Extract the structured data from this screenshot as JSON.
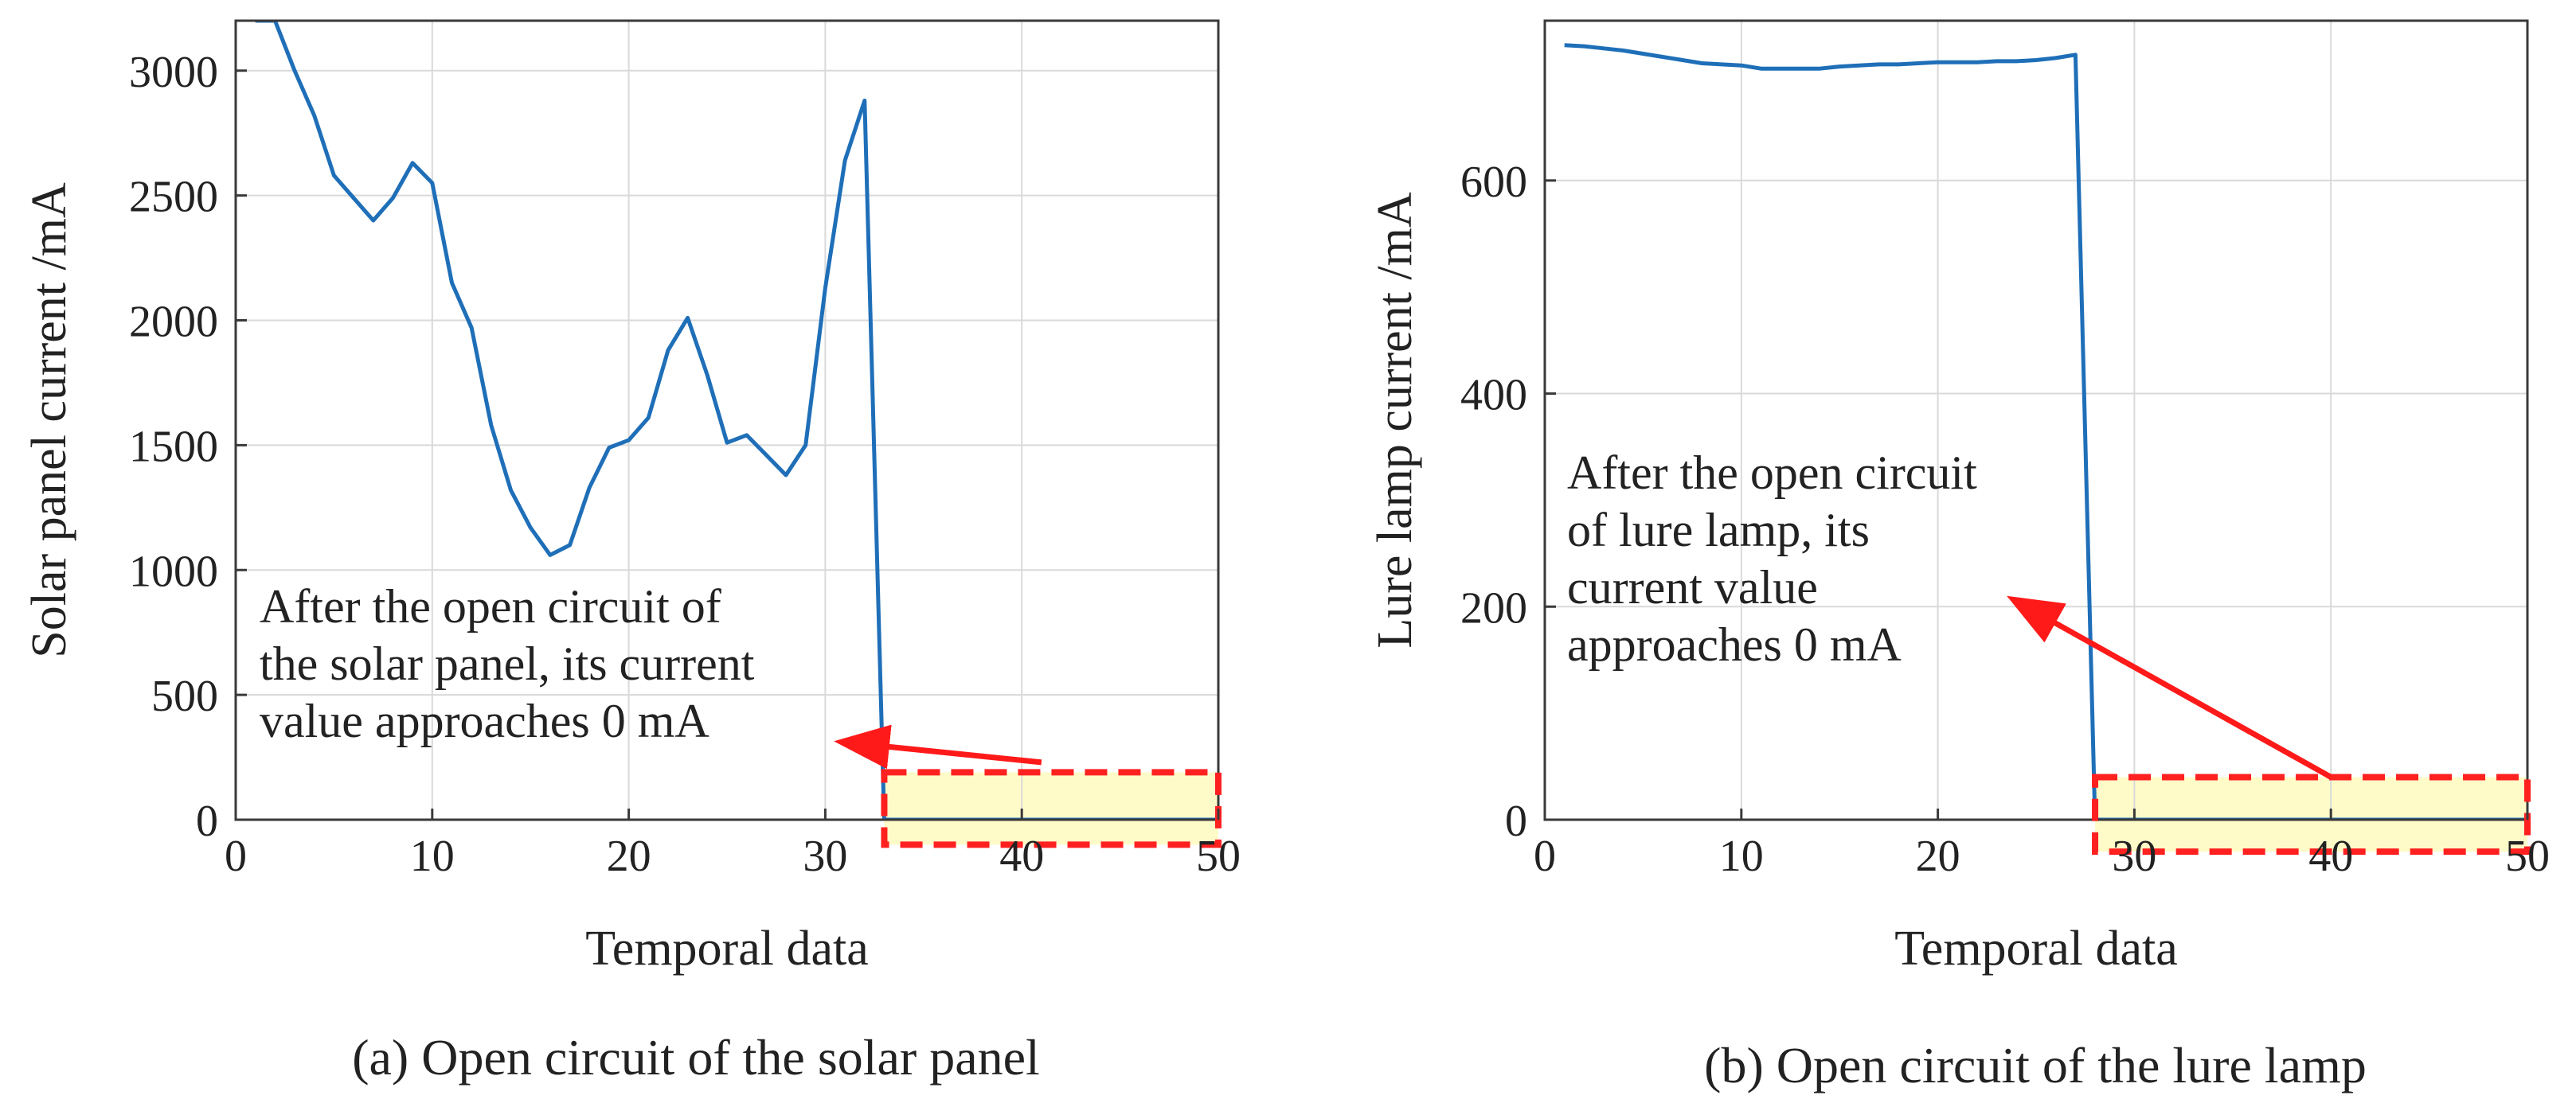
{
  "colors": {
    "line": "#1f6fb8",
    "zero_line": "#3a9b8f",
    "arrow": "#ff1a1a",
    "highlight_fill": "#fffbc8",
    "highlight_border": "#ff2020",
    "grid": "#d9d9d9",
    "axis": "#3a3a3a"
  },
  "chart_data": [
    {
      "type": "line",
      "panel": "a",
      "caption": "(a) Open circuit of the solar panel",
      "xlabel": "Temporal data",
      "ylabel": "Solar panel current /mA",
      "xlim": [
        0,
        50
      ],
      "ylim": [
        0,
        3200
      ],
      "xticks": [
        0,
        10,
        20,
        30,
        40,
        50
      ],
      "yticks": [
        0,
        500,
        1000,
        1500,
        2000,
        2500,
        3000
      ],
      "grid": true,
      "series": [
        {
          "name": "Solar panel current",
          "x": [
            1,
            2,
            3,
            4,
            5,
            6,
            7,
            8,
            9,
            10,
            11,
            12,
            13,
            14,
            15,
            16,
            17,
            18,
            19,
            20,
            21,
            22,
            23,
            24,
            25,
            26,
            27,
            28,
            29,
            30,
            31,
            32,
            33,
            34,
            35,
            36,
            37,
            38,
            39,
            40,
            41,
            42,
            43,
            44,
            45,
            46,
            47,
            48,
            49,
            50
          ],
          "values": [
            3200,
            3200,
            3000,
            2820,
            2580,
            2490,
            2400,
            2490,
            2630,
            2550,
            2150,
            1970,
            1580,
            1320,
            1170,
            1060,
            1100,
            1330,
            1490,
            1520,
            1610,
            1880,
            2010,
            1780,
            1510,
            1540,
            1460,
            1380,
            1500,
            2130,
            2640,
            2880,
            0,
            0,
            0,
            0,
            0,
            0,
            0,
            0,
            0,
            0,
            0,
            0,
            0,
            0,
            0,
            0,
            0,
            0
          ]
        }
      ],
      "highlight": {
        "x_range": [
          33,
          50
        ],
        "y_range": [
          -100,
          190
        ]
      },
      "annotation": {
        "lines": [
          "After the open circuit of",
          "the solar panel, its current",
          "value approaches 0 mA"
        ],
        "arrow_from": [
          41,
          230
        ],
        "arrow_to": [
          31,
          310
        ]
      }
    },
    {
      "type": "line",
      "panel": "b",
      "caption": "(b) Open circuit of the lure lamp",
      "xlabel": "Temporal data",
      "ylabel": "Lure lamp current /mA",
      "xlim": [
        0,
        50
      ],
      "ylim": [
        0,
        750
      ],
      "xticks": [
        0,
        10,
        20,
        30,
        40,
        50
      ],
      "yticks": [
        0,
        200,
        400,
        600
      ],
      "grid": true,
      "series": [
        {
          "name": "Lure lamp current",
          "x": [
            1,
            2,
            3,
            4,
            5,
            6,
            7,
            8,
            9,
            10,
            11,
            12,
            13,
            14,
            15,
            16,
            17,
            18,
            19,
            20,
            21,
            22,
            23,
            24,
            25,
            26,
            27,
            28,
            29,
            30,
            31,
            32,
            33,
            34,
            35,
            36,
            37,
            38,
            39,
            40,
            41,
            42,
            43,
            44,
            45,
            46,
            47,
            48,
            49,
            50
          ],
          "values": [
            727,
            726,
            724,
            722,
            719,
            716,
            713,
            710,
            709,
            708,
            705,
            705,
            705,
            705,
            707,
            708,
            709,
            709,
            710,
            711,
            711,
            711,
            712,
            712,
            713,
            715,
            718,
            0,
            0,
            0,
            0,
            0,
            0,
            0,
            0,
            0,
            0,
            0,
            0,
            0,
            0,
            0,
            0,
            0,
            0,
            0,
            0,
            0,
            0,
            0
          ]
        }
      ],
      "highlight": {
        "x_range": [
          28,
          50
        ],
        "y_range": [
          -30,
          40
        ]
      },
      "annotation": {
        "lines": [
          "After the open circuit",
          "of lure lamp, its",
          "current value",
          "approaches 0 mA"
        ],
        "arrow_from": [
          40,
          40
        ],
        "arrow_to": [
          24,
          205
        ]
      }
    }
  ]
}
